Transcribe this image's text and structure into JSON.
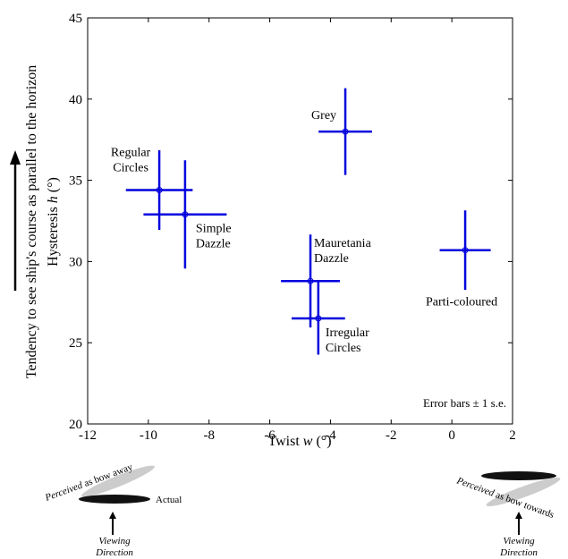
{
  "chart_data": {
    "type": "scatter",
    "x_label": {
      "prefix": "Twist ",
      "var": "w",
      "suffix": " (°)"
    },
    "y_label": {
      "prefix": "Hysteresis ",
      "var": "h",
      "suffix": " (°)"
    },
    "y_note": "Tendency to see ship's course as parallel to the horizon",
    "note": "Error bars ± 1 s.e.",
    "color": "#0000dd",
    "xlim": [
      -12,
      2
    ],
    "xticks": [
      -12,
      -10,
      -8,
      -6,
      -4,
      -2,
      0,
      2
    ],
    "ylim": [
      20,
      45
    ],
    "yticks": [
      20,
      25,
      30,
      35,
      40,
      45
    ],
    "points": [
      {
        "label": [
          "Regular",
          "Circles"
        ],
        "x": -9.64,
        "y": 34.4,
        "xerr": 1.1,
        "yerr": 2.45
      },
      {
        "label": [
          "Simple",
          "Dazzle"
        ],
        "x": -8.79,
        "y": 32.9,
        "xerr": 1.37,
        "yerr": 3.33
      },
      {
        "label": [
          "Grey"
        ],
        "x": -3.51,
        "y": 38.0,
        "xerr": 0.88,
        "yerr": 2.67
      },
      {
        "label": [
          "Mauretania",
          "Dazzle"
        ],
        "x": -4.66,
        "y": 28.8,
        "xerr": 0.97,
        "yerr": 2.86
      },
      {
        "label": [
          "Irregular",
          "Circles"
        ],
        "x": -4.4,
        "y": 26.5,
        "xerr": 0.88,
        "yerr": 2.23
      },
      {
        "label": [
          "Parti-coloured"
        ],
        "x": 0.44,
        "y": 30.7,
        "xerr": 0.84,
        "yerr": 2.45
      }
    ],
    "illustration": {
      "left_perceived": "as bow away",
      "perceived_word": "Perceived",
      "actual": "Actual",
      "viewing": [
        "Viewing",
        "Direction"
      ],
      "right_perceived": "as bow towards"
    }
  }
}
